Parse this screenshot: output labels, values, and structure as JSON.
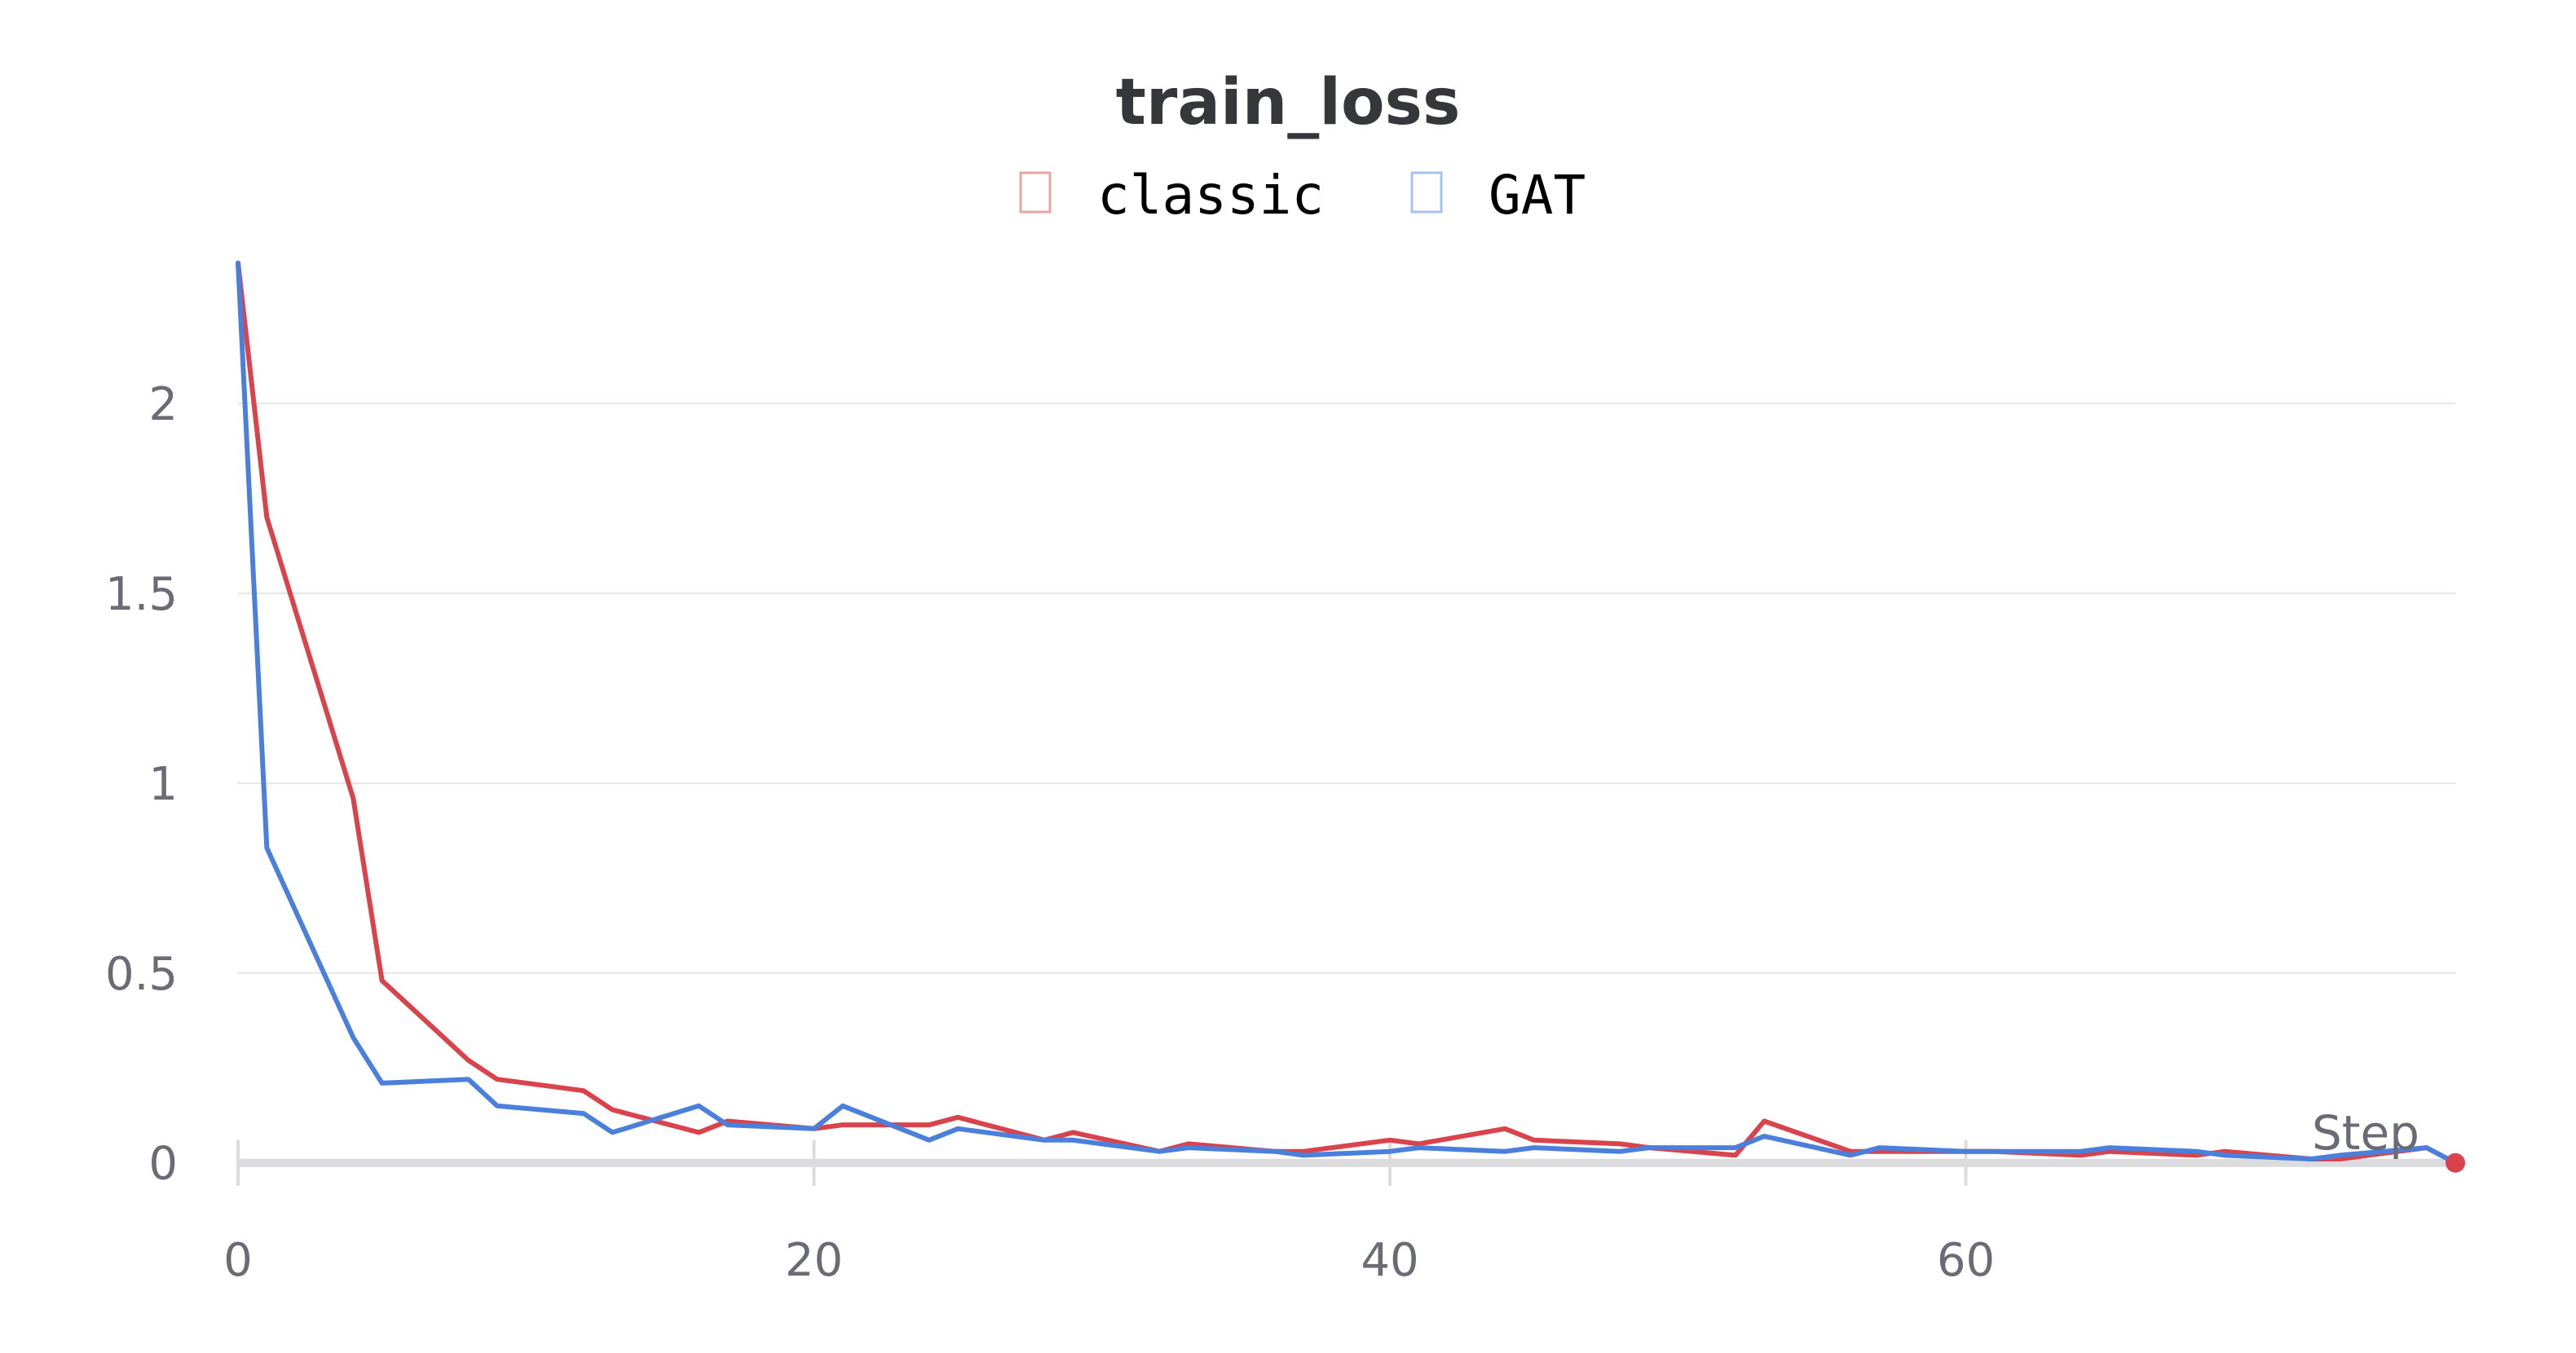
{
  "colors": {
    "classic": "#d9434b",
    "gat": "#4a80dc",
    "grid": "#e6e6e9",
    "axis": "#dcdcdf"
  },
  "chart_data": {
    "type": "line",
    "title": "train_loss",
    "xlabel": "Step",
    "ylabel": "",
    "xlim": [
      0,
      77
    ],
    "ylim": [
      -0.05,
      2.38
    ],
    "xticks": [
      0,
      20,
      40,
      60
    ],
    "xtick_labels": [
      "0",
      "20",
      "40",
      "60"
    ],
    "yticks": [
      0,
      0.5,
      1,
      1.5,
      2
    ],
    "ytick_labels": [
      "0",
      "0.5",
      "1",
      "1.5",
      "2"
    ],
    "grid": true,
    "legend_position": "top-center",
    "series": [
      {
        "name": "classic",
        "color": "#d9434b",
        "x": [
          0,
          1,
          4,
          5,
          8,
          9,
          12,
          13,
          16,
          17,
          20,
          21,
          24,
          25,
          28,
          29,
          32,
          33,
          36,
          37,
          40,
          41,
          44,
          45,
          48,
          49,
          52,
          53,
          56,
          57,
          60,
          61,
          64,
          65,
          68,
          69,
          72,
          73,
          76,
          77
        ],
        "y": [
          2.37,
          1.7,
          0.96,
          0.48,
          0.27,
          0.22,
          0.19,
          0.14,
          0.08,
          0.11,
          0.09,
          0.1,
          0.1,
          0.12,
          0.06,
          0.08,
          0.03,
          0.05,
          0.03,
          0.03,
          0.06,
          0.05,
          0.09,
          0.06,
          0.05,
          0.04,
          0.02,
          0.11,
          0.03,
          0.03,
          0.03,
          0.03,
          0.02,
          0.03,
          0.02,
          0.03,
          0.01,
          0.01,
          0.04,
          0.0
        ]
      },
      {
        "name": "GAT",
        "color": "#4a80dc",
        "x": [
          0,
          1,
          4,
          5,
          8,
          9,
          12,
          13,
          16,
          17,
          20,
          21,
          24,
          25,
          28,
          29,
          32,
          33,
          36,
          37,
          40,
          41,
          44,
          45,
          48,
          49,
          52,
          53,
          56,
          57,
          60,
          61,
          64,
          65,
          68,
          69,
          72,
          73,
          76,
          77
        ],
        "y": [
          2.37,
          0.83,
          0.33,
          0.21,
          0.22,
          0.15,
          0.13,
          0.08,
          0.15,
          0.1,
          0.09,
          0.15,
          0.06,
          0.09,
          0.06,
          0.06,
          0.03,
          0.04,
          0.03,
          0.02,
          0.03,
          0.04,
          0.03,
          0.04,
          0.03,
          0.04,
          0.04,
          0.07,
          0.02,
          0.04,
          0.03,
          0.03,
          0.03,
          0.04,
          0.03,
          0.02,
          0.01,
          0.02,
          0.04,
          0.0
        ]
      }
    ]
  }
}
